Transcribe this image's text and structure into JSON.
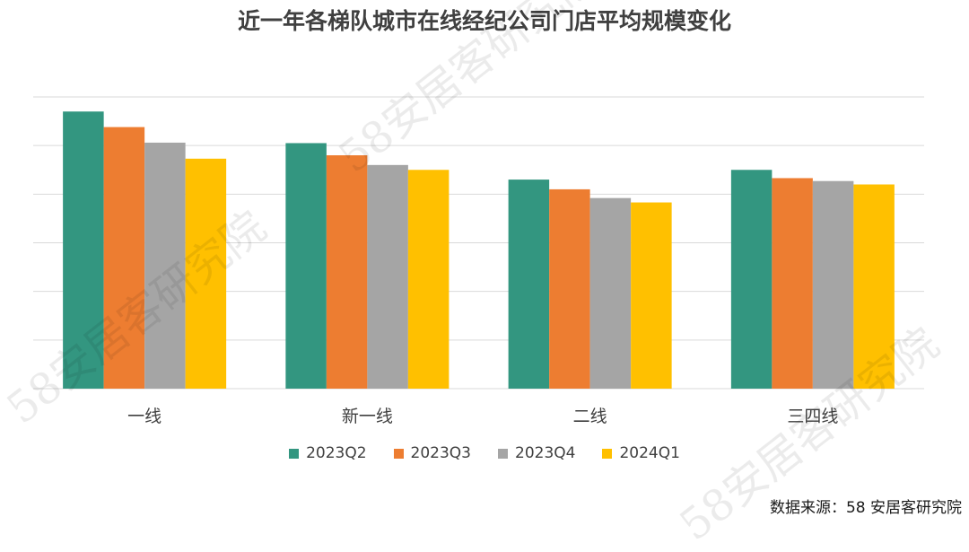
{
  "title": "近一年各梯队城市在线经纪公司门店平均规模变化",
  "source": "数据来源：58 安居客研究院",
  "watermark": "58安居客研究院",
  "chart_data": {
    "type": "bar",
    "title": "近一年各梯队城市在线经纪公司门店平均规模变化",
    "categories": [
      "一线",
      "新一线",
      "二线",
      "三四线"
    ],
    "series": [
      {
        "name": "2023Q2",
        "color": "#339680",
        "values": [
          5.7,
          5.05,
          4.3,
          4.5
        ]
      },
      {
        "name": "2023Q3",
        "color": "#ED7D31",
        "values": [
          5.38,
          4.8,
          4.1,
          4.33
        ]
      },
      {
        "name": "2023Q4",
        "color": "#A5A5A5",
        "values": [
          5.06,
          4.6,
          3.92,
          4.27
        ]
      },
      {
        "name": "2024Q1",
        "color": "#FFC000",
        "values": [
          4.73,
          4.5,
          3.83,
          4.2
        ]
      }
    ],
    "ylim": [
      0,
      6
    ],
    "gridlines": [
      1,
      2,
      3,
      4,
      5,
      6
    ],
    "grid": true,
    "yaxis_labels_shown": false,
    "legend": "bottom"
  }
}
